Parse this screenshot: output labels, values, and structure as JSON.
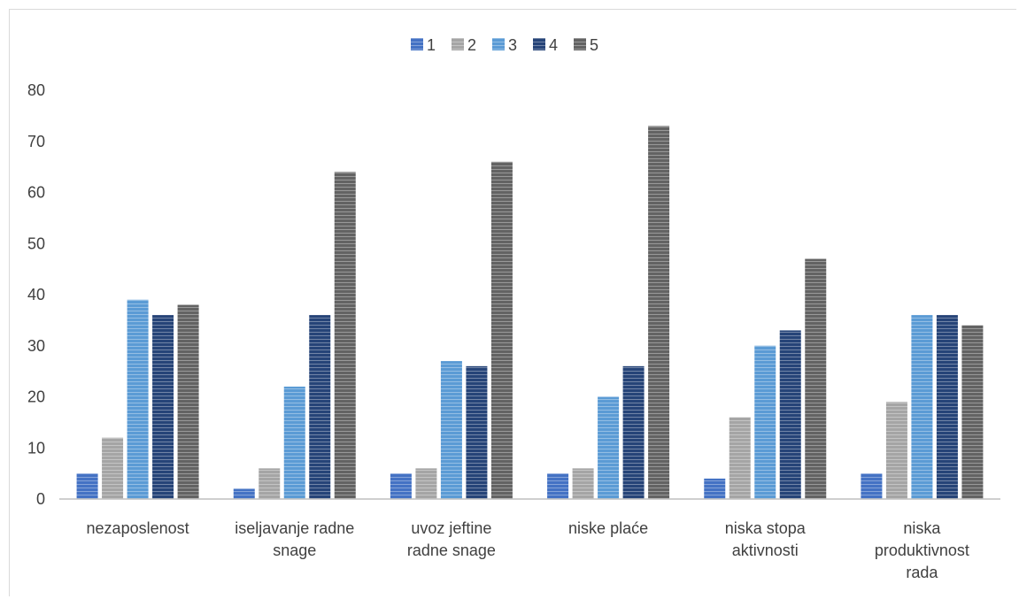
{
  "chart_data": {
    "type": "bar",
    "title": "",
    "xlabel": "",
    "ylabel": "",
    "ylim": [
      0,
      80
    ],
    "yticks": [
      "0",
      "10",
      "20",
      "30",
      "40",
      "50",
      "60",
      "70",
      "80"
    ],
    "categories": [
      [
        "nezaposlenost"
      ],
      [
        "iseljavanje radne",
        "snage"
      ],
      [
        "uvoz jeftine",
        "radne snage"
      ],
      [
        "niske plaće"
      ],
      [
        "niska stopa",
        "aktivnosti"
      ],
      [
        "niska",
        "produktivnost",
        "rada"
      ]
    ],
    "series": [
      {
        "name": "1",
        "color": "#4472c4",
        "values": [
          5,
          2,
          5,
          5,
          4,
          5
        ]
      },
      {
        "name": "2",
        "color": "#a5a5a5",
        "values": [
          12,
          6,
          6,
          6,
          16,
          19
        ]
      },
      {
        "name": "3",
        "color": "#5b9bd5",
        "values": [
          39,
          22,
          27,
          20,
          30,
          36
        ]
      },
      {
        "name": "4",
        "color": "#264478",
        "values": [
          36,
          36,
          26,
          26,
          33,
          36
        ]
      },
      {
        "name": "5",
        "color": "#636363",
        "values": [
          38,
          64,
          66,
          73,
          47,
          34
        ]
      }
    ],
    "legend_position": "top",
    "grid": false,
    "bar_pattern": "horizontal-stripes"
  }
}
